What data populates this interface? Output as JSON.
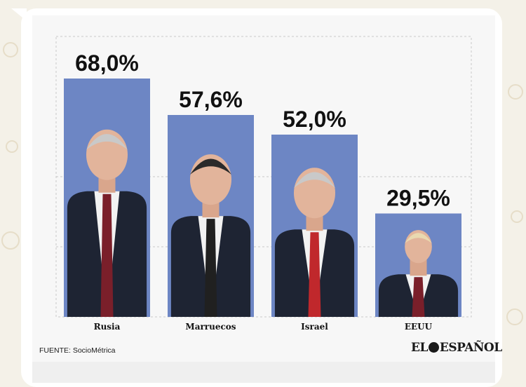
{
  "chart_data": {
    "type": "bar",
    "categories": [
      "Rusia",
      "Marruecos",
      "Israel",
      "EEUU"
    ],
    "values": [
      68.0,
      57.6,
      52.0,
      29.5
    ],
    "value_labels": [
      "68,0%",
      "57,6%",
      "52,0%",
      "29,5%"
    ],
    "title": "",
    "xlabel": "",
    "ylabel": "",
    "ylim": [
      0,
      80
    ],
    "grid": true,
    "bar_color": "#6d86c4",
    "image_bars": true
  },
  "source_text": "FUENTE: SocioMétrica",
  "logo": {
    "part1": "EL",
    "part2": "ESPAÑOL"
  }
}
